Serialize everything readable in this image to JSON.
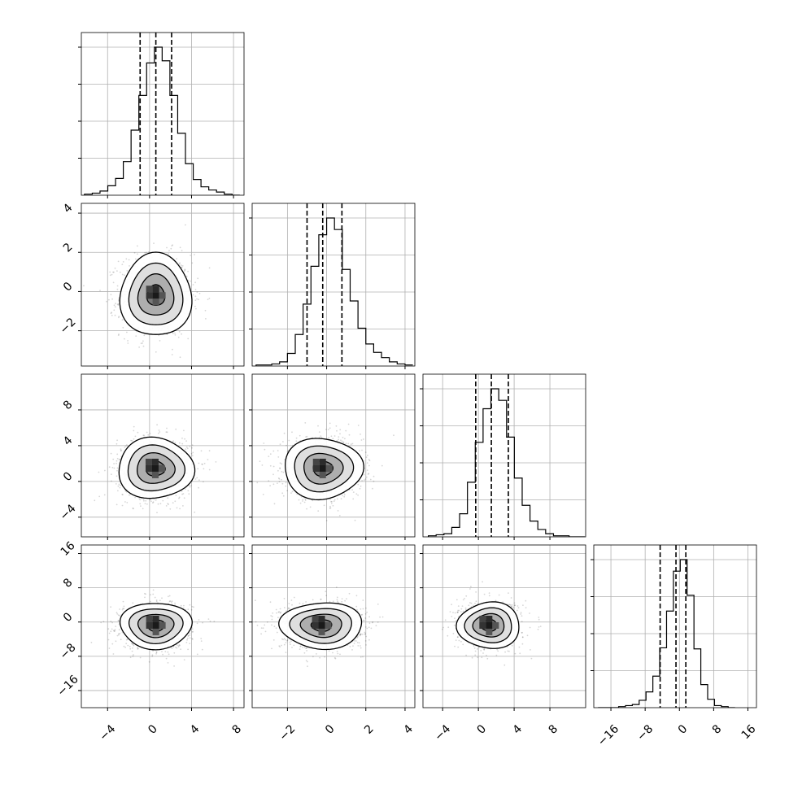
{
  "chart_data": {
    "type": "corner",
    "grid": true,
    "variables": [
      {
        "index": 0,
        "range": [
          -6.5,
          9.0
        ],
        "ticks": [
          -4,
          0,
          4,
          8
        ],
        "tick_labels": [
          "−4",
          "0",
          "4",
          "8"
        ],
        "quantiles": [
          -0.9,
          0.6,
          2.1
        ],
        "hist": {
          "edges_start": -6.2,
          "bin_width": 0.74,
          "counts": [
            1,
            2,
            4,
            9,
            16,
            32,
            62,
            95,
            126,
            141,
            128,
            95,
            59,
            30,
            15,
            8,
            5,
            3,
            1,
            0
          ]
        }
      },
      {
        "index": 1,
        "range": [
          -3.8,
          4.5
        ],
        "ticks": [
          -2,
          0,
          2,
          4
        ],
        "tick_labels": [
          "−2",
          "0",
          "2",
          "4"
        ],
        "quantiles": [
          -1.0,
          -0.2,
          0.78
        ],
        "hist": {
          "edges_start": -3.6,
          "bin_width": 0.4,
          "counts": [
            1,
            1,
            2,
            4,
            12,
            30,
            59,
            95,
            125,
            141,
            130,
            92,
            62,
            36,
            21,
            13,
            8,
            4,
            2,
            1
          ]
        }
      },
      {
        "index": 2,
        "range": [
          -6.2,
          12.0
        ],
        "ticks": [
          -4,
          0,
          4,
          8
        ],
        "tick_labels": [
          "−4",
          "0",
          "4",
          "8"
        ],
        "quantiles": [
          -0.3,
          1.45,
          3.35
        ],
        "hist": {
          "edges_start": -5.6,
          "bin_width": 0.875,
          "counts": [
            1,
            2,
            3,
            9,
            22,
            52,
            90,
            122,
            141,
            130,
            95,
            56,
            30,
            15,
            7,
            3,
            1,
            1,
            0,
            0
          ]
        }
      },
      {
        "index": 3,
        "range": [
          -20.0,
          18.0
        ],
        "ticks": [
          -16,
          -8,
          0,
          8,
          16
        ],
        "tick_labels": [
          "−16",
          "−8",
          "0",
          "8",
          "16"
        ],
        "quantiles": [
          -4.5,
          -0.8,
          1.5
        ],
        "hist": {
          "edges_start": -19.0,
          "bin_width": 1.6,
          "counts": [
            0,
            0,
            0,
            1,
            2,
            3,
            7,
            15,
            30,
            57,
            92,
            130,
            141,
            107,
            56,
            22,
            8,
            2,
            1,
            0
          ]
        }
      }
    ],
    "pairs": [
      {
        "x": 0,
        "y": 1,
        "center": [
          0.6,
          -0.2
        ],
        "sigma": [
          1.7,
          1.05
        ]
      },
      {
        "x": 0,
        "y": 2,
        "center": [
          0.55,
          1.45
        ],
        "sigma": [
          1.8,
          1.7
        ]
      },
      {
        "x": 1,
        "y": 2,
        "center": [
          -0.2,
          1.45
        ],
        "sigma": [
          1.0,
          1.7
        ]
      },
      {
        "x": 0,
        "y": 3,
        "center": [
          0.6,
          -0.8
        ],
        "sigma": [
          1.7,
          2.7
        ]
      },
      {
        "x": 1,
        "y": 3,
        "center": [
          -0.25,
          -0.8
        ],
        "sigma": [
          1.05,
          2.7
        ]
      },
      {
        "x": 2,
        "y": 3,
        "center": [
          1.2,
          -0.8
        ],
        "sigma": [
          1.75,
          2.7
        ]
      }
    ]
  }
}
